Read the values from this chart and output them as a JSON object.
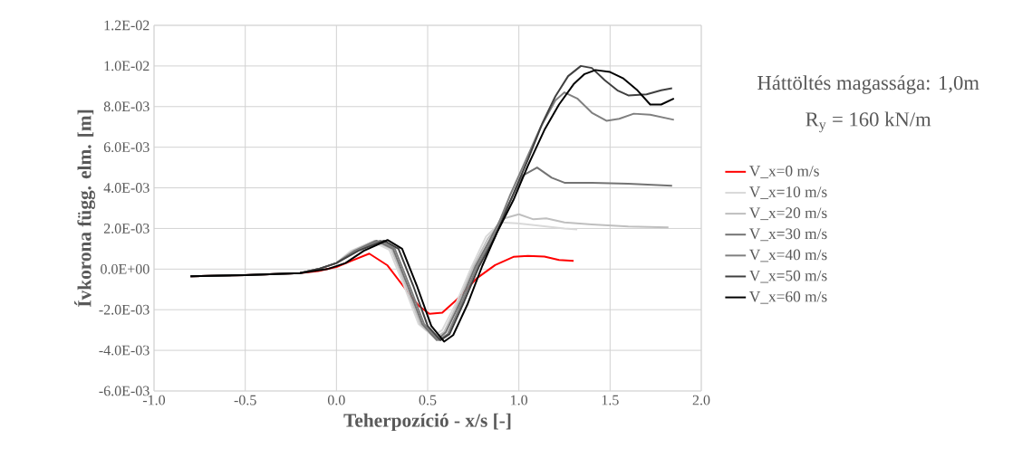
{
  "chart_data": {
    "type": "line",
    "xlabel": "Teherpozíció - x/s [-]",
    "ylabel": "Ívkorona függ. elm. [m]",
    "annotations": [
      "Háttöltés magassága: 1,0m",
      "R$_{y}$ = 160 kN/m"
    ],
    "xlim": [
      -1.0,
      2.0
    ],
    "xticks": [
      {
        "value": -1.0,
        "label": "-1.0"
      },
      {
        "value": -0.5,
        "label": "-0.5"
      },
      {
        "value": 0.0,
        "label": "0.0"
      },
      {
        "value": 0.5,
        "label": "0.5"
      },
      {
        "value": 1.0,
        "label": "1.0"
      },
      {
        "value": 1.5,
        "label": "1.5"
      },
      {
        "value": 2.0,
        "label": "2.0"
      }
    ],
    "ylim": [
      -0.006,
      0.012
    ],
    "yticks": [
      {
        "value": -0.006,
        "label": "-6.0E-03"
      },
      {
        "value": -0.004,
        "label": "-4.0E-03"
      },
      {
        "value": -0.002,
        "label": "-2.0E-03"
      },
      {
        "value": 0.0,
        "label": "0.0E+00"
      },
      {
        "value": 0.002,
        "label": "2.0E-03"
      },
      {
        "value": 0.004,
        "label": "4.0E-03"
      },
      {
        "value": 0.006,
        "label": "6.0E-03"
      },
      {
        "value": 0.008,
        "label": "8.0E-03"
      },
      {
        "value": 0.01,
        "label": "1.0E-02"
      },
      {
        "value": 0.012,
        "label": "1.2E-02"
      }
    ],
    "grid": true,
    "legend": "right",
    "marker": "none",
    "line_style": "solid",
    "series": [
      {
        "name": "V_x=0 m/s",
        "color": "#ff0000",
        "x": [
          -0.8,
          -0.5,
          -0.2,
          -0.1,
          0.0,
          0.08,
          0.18,
          0.28,
          0.38,
          0.45,
          0.51,
          0.58,
          0.66,
          0.77,
          0.87,
          0.97,
          1.05,
          1.14,
          1.22,
          1.3
        ],
        "values": [
          -0.00035,
          -0.0003,
          -0.0002,
          -0.0001,
          0.0001,
          0.0004,
          0.00076,
          0.00018,
          -0.001,
          -0.0018,
          -0.0022,
          -0.00215,
          -0.0015,
          -0.00045,
          0.0002,
          0.0006,
          0.00065,
          0.00062,
          0.00045,
          0.0004
        ]
      },
      {
        "name": "V_x=10 m/s",
        "color": "#d9d9d9",
        "x": [
          -0.8,
          -0.5,
          -0.2,
          -0.1,
          0.0,
          0.08,
          0.2,
          0.29,
          0.37,
          0.45,
          0.53,
          0.58,
          0.66,
          0.74,
          0.82,
          0.9,
          0.99,
          1.05,
          1.15,
          1.25,
          1.32
        ],
        "values": [
          -0.00035,
          -0.0003,
          -0.0002,
          0.0,
          0.0003,
          0.0009,
          0.00135,
          0.00095,
          -0.0008,
          -0.0027,
          -0.0033,
          -0.003,
          -0.0016,
          0.0001,
          0.0016,
          0.0023,
          0.00225,
          0.0022,
          0.0021,
          0.002,
          0.00195
        ]
      },
      {
        "name": "V_x=20 m/s",
        "color": "#bfbfbf",
        "x": [
          -0.8,
          -0.5,
          -0.2,
          -0.1,
          0.0,
          0.09,
          0.21,
          0.3,
          0.38,
          0.46,
          0.54,
          0.59,
          0.67,
          0.75,
          0.83,
          0.92,
          1.0,
          1.08,
          1.15,
          1.25,
          1.4,
          1.6,
          1.82
        ],
        "values": [
          -0.00035,
          -0.0003,
          -0.0002,
          0.0,
          0.0003,
          0.0009,
          0.0014,
          0.001,
          -0.0008,
          -0.0027,
          -0.0034,
          -0.0031,
          -0.0016,
          0.0001,
          0.0015,
          0.0025,
          0.0027,
          0.00245,
          0.0025,
          0.0023,
          0.0022,
          0.0021,
          0.00205
        ]
      },
      {
        "name": "V_x=30 m/s",
        "color": "#737373",
        "x": [
          -0.8,
          -0.5,
          -0.2,
          -0.1,
          0.0,
          0.1,
          0.22,
          0.31,
          0.39,
          0.47,
          0.55,
          0.6,
          0.68,
          0.76,
          0.85,
          0.95,
          1.02,
          1.1,
          1.18,
          1.25,
          1.4,
          1.6,
          1.84
        ],
        "values": [
          -0.00035,
          -0.0003,
          -0.0002,
          0.0,
          0.0003,
          0.0009,
          0.0014,
          0.001,
          -0.0008,
          -0.0027,
          -0.0035,
          -0.0031,
          -0.0016,
          0.0001,
          0.0016,
          0.0033,
          0.0046,
          0.005,
          0.0045,
          0.00425,
          0.00425,
          0.0042,
          0.0041
        ]
      },
      {
        "name": "V_x=40 m/s",
        "color": "#808080",
        "x": [
          -0.8,
          -0.5,
          -0.2,
          -0.1,
          0.0,
          0.11,
          0.24,
          0.32,
          0.4,
          0.48,
          0.56,
          0.61,
          0.69,
          0.77,
          0.86,
          0.95,
          1.04,
          1.12,
          1.2,
          1.25,
          1.32,
          1.4,
          1.48,
          1.55,
          1.63,
          1.72,
          1.85
        ],
        "values": [
          -0.00035,
          -0.0003,
          -0.0002,
          0.0,
          0.0003,
          0.0009,
          0.0014,
          0.001,
          -0.0008,
          -0.0027,
          -0.0035,
          -0.0032,
          -0.0016,
          0.0001,
          0.0016,
          0.0036,
          0.0054,
          0.007,
          0.0083,
          0.0087,
          0.0084,
          0.0077,
          0.0073,
          0.0074,
          0.00765,
          0.0076,
          0.00735
        ]
      },
      {
        "name": "V_x=50 m/s",
        "color": "#404040",
        "x": [
          -0.8,
          -0.5,
          -0.2,
          -0.1,
          0.0,
          0.12,
          0.26,
          0.34,
          0.42,
          0.5,
          0.57,
          0.62,
          0.7,
          0.78,
          0.87,
          0.96,
          1.05,
          1.13,
          1.2,
          1.27,
          1.34,
          1.4,
          1.47,
          1.54,
          1.6,
          1.7,
          1.78,
          1.84
        ],
        "values": [
          -0.00035,
          -0.0003,
          -0.0002,
          0.0,
          0.0003,
          0.0009,
          0.0014,
          0.001,
          -0.0008,
          -0.0028,
          -0.0035,
          -0.0032,
          -0.0016,
          0.0001,
          0.0016,
          0.0035,
          0.0054,
          0.0072,
          0.0085,
          0.0095,
          0.01,
          0.0099,
          0.0093,
          0.0088,
          0.00855,
          0.0086,
          0.0088,
          0.0089
        ]
      },
      {
        "name": "V_x=60 m/s",
        "color": "#000000",
        "x": [
          -0.8,
          -0.5,
          -0.2,
          -0.05,
          0.05,
          0.15,
          0.28,
          0.36,
          0.44,
          0.52,
          0.59,
          0.64,
          0.72,
          0.8,
          0.88,
          0.97,
          1.05,
          1.14,
          1.22,
          1.3,
          1.36,
          1.42,
          1.5,
          1.57,
          1.65,
          1.72,
          1.78,
          1.85
        ],
        "values": [
          -0.00035,
          -0.0003,
          -0.0002,
          0.0,
          0.0003,
          0.0009,
          0.00143,
          0.001,
          -0.0008,
          -0.0028,
          -0.00357,
          -0.00325,
          -0.0017,
          0.00017,
          0.0018,
          0.0034,
          0.0051,
          0.00685,
          0.0081,
          0.0091,
          0.0096,
          0.0098,
          0.0097,
          0.0094,
          0.0088,
          0.0081,
          0.0081,
          0.0084
        ]
      }
    ]
  }
}
